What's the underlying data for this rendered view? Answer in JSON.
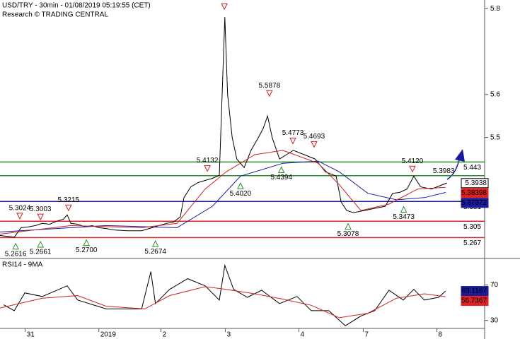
{
  "chart_data": [
    {
      "type": "line",
      "title": "USD/TRY - 30min - 01/08/2019 05:19:55 (CET)",
      "subtitle": "Research © TRADING CENTRAL",
      "xlim": [
        0,
        105.4
      ],
      "ylim": [
        5.22,
        5.82
      ],
      "yticks": [
        5.5,
        5.6,
        5.8
      ],
      "series": [
        {
          "color": "#000000",
          "x": [
            0,
            1.5,
            3.1,
            4.6,
            6.2,
            7.7,
            9.2,
            10.8,
            12.3,
            13.8,
            14.6,
            15.4,
            16.9,
            18.5,
            20,
            21.5,
            23.1,
            24.6,
            27.7,
            30.8,
            33.1,
            34.6,
            36.2,
            37.7,
            39.2,
            40,
            41.5,
            43.1,
            44.6,
            46.2,
            47.7,
            48.9,
            49.5,
            50.5,
            51.5,
            53.1,
            54.6,
            56.2,
            57.2,
            58.2,
            59.2,
            60.8,
            62.3,
            63.8,
            66.2,
            68.5,
            70.8,
            73.1,
            74.2,
            75.4,
            76.9,
            79.2,
            81.5,
            83.8,
            85.4,
            86.9,
            88.5,
            90,
            91.5,
            93.8,
            96.2,
            97.2
          ],
          "values": [
            5.272,
            5.27,
            5.268,
            5.29,
            5.292,
            5.295,
            5.3,
            5.298,
            5.305,
            5.31,
            5.32,
            5.3,
            5.298,
            5.292,
            5.295,
            5.29,
            5.288,
            5.285,
            5.283,
            5.283,
            5.29,
            5.295,
            5.3,
            5.303,
            5.315,
            5.36,
            5.385,
            5.395,
            5.4,
            5.405,
            5.412,
            5.78,
            5.6,
            5.5,
            5.45,
            5.43,
            5.47,
            5.5,
            5.52,
            5.55,
            5.5,
            5.45,
            5.46,
            5.47,
            5.46,
            5.45,
            5.42,
            5.41,
            5.35,
            5.33,
            5.325,
            5.33,
            5.335,
            5.34,
            5.37,
            5.372,
            5.38,
            5.41,
            5.385,
            5.38,
            5.39,
            5.394
          ]
        },
        {
          "color": "#1a1a9a",
          "x": [
            0,
            15.4,
            23.1,
            38.5,
            46.2,
            52.3,
            61.5,
            69.2,
            73.8,
            80,
            86.2,
            92.3,
            96.9
          ],
          "values": [
            5.28,
            5.29,
            5.295,
            5.29,
            5.34,
            5.41,
            5.44,
            5.445,
            5.42,
            5.37,
            5.355,
            5.36,
            5.372
          ]
        },
        {
          "color": "#cc2222",
          "x": [
            0,
            15.4,
            30.8,
            38.5,
            44.6,
            49.2,
            55.4,
            61.5,
            69.2,
            73.8,
            78.5,
            84.6,
            90.8,
            96.9
          ],
          "values": [
            5.275,
            5.295,
            5.29,
            5.3,
            5.38,
            5.42,
            5.46,
            5.47,
            5.44,
            5.39,
            5.33,
            5.345,
            5.38,
            5.384
          ]
        }
      ],
      "levels": [
        {
          "value": 5.443,
          "color": "#2e8b2e"
        },
        {
          "value": 5.411,
          "color": "#2e8b2e"
        },
        {
          "value": 5.351,
          "color": "#1a1a9a"
        },
        {
          "value": 5.305,
          "color": "#dd2222"
        },
        {
          "value": 5.267,
          "color": "#dd2222"
        }
      ],
      "annotations": [
        {
          "x": 3.4,
          "value": 5.2616,
          "label": "5.2616",
          "marker": "up"
        },
        {
          "x": 4.3,
          "value": 5.3024,
          "label": "5.3024",
          "marker": "down"
        },
        {
          "x": 8.8,
          "value": 5.3003,
          "label": "5.3003",
          "marker": "down"
        },
        {
          "x": 8.8,
          "value": 5.2661,
          "label": "5.2661",
          "marker": "up"
        },
        {
          "x": 14.9,
          "value": 5.3215,
          "label": "5.3215",
          "marker": "down"
        },
        {
          "x": 18.8,
          "value": 5.27,
          "label": "5.2700",
          "marker": "up"
        },
        {
          "x": 33.8,
          "value": 5.2674,
          "label": "5.2674",
          "marker": "up"
        },
        {
          "x": 45.1,
          "value": 5.4132,
          "label": "5.4132",
          "marker": "down"
        },
        {
          "x": 48.8,
          "value": 5.79,
          "marker": "down"
        },
        {
          "x": 52.3,
          "value": 5.402,
          "label": "5.4020",
          "marker": "up"
        },
        {
          "x": 58.6,
          "value": 5.5878,
          "label": "5.5878",
          "marker": "down"
        },
        {
          "x": 61.2,
          "value": 5.4394,
          "label": "5.4394",
          "marker": "up"
        },
        {
          "x": 63.7,
          "value": 5.4773,
          "label": "5.4773",
          "marker": "down"
        },
        {
          "x": 68.3,
          "value": 5.4693,
          "label": "5.4693",
          "marker": "down"
        },
        {
          "x": 75.7,
          "value": 5.3078,
          "label": "5.3078",
          "marker": "up"
        },
        {
          "x": 87.8,
          "value": 5.3473,
          "label": "5.3473",
          "marker": "up"
        },
        {
          "x": 89.7,
          "value": 5.412,
          "label": "5.4120",
          "marker": "down"
        },
        {
          "x": 96.5,
          "value": 5.3983,
          "label": "5.3983"
        }
      ],
      "price_tags": [
        {
          "value": 5.3938,
          "label": "5.3938",
          "color": "#000000"
        },
        {
          "value": 5.38398,
          "label": "5.38398",
          "color": "#dd2222"
        },
        {
          "value": 5.37372,
          "label": "5.37372",
          "color": "#1a1a9a"
        }
      ]
    },
    {
      "type": "line",
      "title": "RSI14 - 9MA",
      "xlim": [
        0,
        105.4
      ],
      "ylim": [
        21,
        99
      ],
      "yticks": [
        30,
        70
      ],
      "xticks": [
        {
          "value": 5.5,
          "label": "31"
        },
        {
          "value": 21.5,
          "label": "2019"
        },
        {
          "value": 35,
          "label": "2"
        },
        {
          "value": 49,
          "label": "3"
        },
        {
          "value": 65,
          "label": "4"
        },
        {
          "value": 79,
          "label": "7"
        },
        {
          "value": 95,
          "label": "8"
        }
      ],
      "series": [
        {
          "color": "#000000",
          "x": [
            0.8,
            3.1,
            5.4,
            9.2,
            14.6,
            16.9,
            23.1,
            30.8,
            32.8,
            33.8,
            36.9,
            40.8,
            44.6,
            47.7,
            48.9,
            50.8,
            53.8,
            56.9,
            60.8,
            64.6,
            67.7,
            71.5,
            75.1,
            78.5,
            81.5,
            84.6,
            87.7,
            90,
            92.3,
            95.4,
            96.9
          ],
          "values": [
            47.6,
            41,
            61,
            57,
            69,
            53,
            43,
            43,
            85,
            49,
            65,
            77,
            69,
            53,
            92,
            65,
            56,
            64,
            49,
            57,
            41,
            41,
            24,
            35,
            41,
            64,
            53,
            65,
            53,
            56,
            63.1
          ]
        },
        {
          "color": "#cc2222",
          "x": [
            0,
            9.2,
            16.9,
            23.1,
            31.5,
            36.9,
            44.6,
            49.2,
            55.4,
            61.5,
            67.7,
            73.8,
            80,
            86.2,
            92.3,
            96.9
          ],
          "values": [
            44,
            55,
            58,
            46,
            43,
            58,
            68,
            65,
            60,
            54,
            47,
            33,
            38,
            55,
            60,
            56.7
          ]
        }
      ],
      "price_tags": [
        {
          "value": 63.1167,
          "label": "63.1167",
          "color": "#1a1a9a"
        },
        {
          "value": 56.7367,
          "label": "56.7367",
          "color": "#dd2222"
        }
      ]
    }
  ]
}
